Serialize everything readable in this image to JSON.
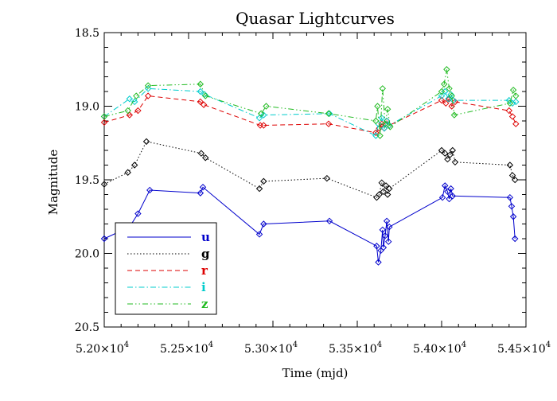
{
  "chart_data": {
    "type": "line",
    "title": "Quasar Lightcurves",
    "xlabel": "Time (mjd)",
    "ylabel": "Magnitude",
    "xlim": [
      52000,
      54500
    ],
    "ylim": [
      20.5,
      18.5
    ],
    "y_inverted": true,
    "grid": false,
    "legend_position": "bottom-left",
    "x_ticks": [
      {
        "value": 52000,
        "label": "5.20×10",
        "exp": "4"
      },
      {
        "value": 52500,
        "label": "5.25×10",
        "exp": "4"
      },
      {
        "value": 53000,
        "label": "5.30×10",
        "exp": "4"
      },
      {
        "value": 53500,
        "label": "5.35×10",
        "exp": "4"
      },
      {
        "value": 54000,
        "label": "5.40×10",
        "exp": "4"
      },
      {
        "value": 54500,
        "label": "5.45×10",
        "exp": "4"
      }
    ],
    "y_ticks": [
      {
        "value": 18.5,
        "label": "18.5"
      },
      {
        "value": 19.0,
        "label": "19.0"
      },
      {
        "value": 19.5,
        "label": "19.5"
      },
      {
        "value": 20.0,
        "label": "20.0"
      },
      {
        "value": 20.5,
        "label": "20.5"
      }
    ],
    "series": [
      {
        "name": "u",
        "color": "#0000cc",
        "dash": "",
        "x": [
          52000,
          52150,
          52200,
          52270,
          52570,
          52585,
          52920,
          52945,
          53335,
          53615,
          53625,
          53640,
          53650,
          53655,
          53665,
          53675,
          53685,
          53690,
          54005,
          54020,
          54035,
          54045,
          54055,
          54065,
          54405,
          54415,
          54425,
          54435
        ],
        "y": [
          19.9,
          19.82,
          19.73,
          19.57,
          19.59,
          19.55,
          19.87,
          19.8,
          19.78,
          19.95,
          20.06,
          19.98,
          19.84,
          19.96,
          19.88,
          19.78,
          19.92,
          19.82,
          19.62,
          19.54,
          19.58,
          19.63,
          19.56,
          19.61,
          19.62,
          19.68,
          19.75,
          19.9
        ]
      },
      {
        "name": "g",
        "color": "#000000",
        "dash": "1.5,2.5",
        "x": [
          52000,
          52140,
          52180,
          52250,
          52575,
          52600,
          52920,
          52945,
          53320,
          53615,
          53630,
          53645,
          53655,
          53670,
          53680,
          53690,
          54000,
          54020,
          54035,
          54050,
          54065,
          54080,
          54405,
          54420,
          54435
        ],
        "y": [
          19.53,
          19.45,
          19.4,
          19.24,
          19.32,
          19.35,
          19.56,
          19.51,
          19.49,
          19.62,
          19.6,
          19.52,
          19.58,
          19.54,
          19.6,
          19.56,
          19.3,
          19.32,
          19.36,
          19.33,
          19.3,
          19.38,
          19.4,
          19.47,
          19.5
        ]
      },
      {
        "name": "r",
        "color": "#dd0000",
        "dash": "6,4",
        "x": [
          52000,
          52150,
          52200,
          52260,
          52570,
          52590,
          52925,
          52945,
          53330,
          53610,
          53630,
          53645,
          53660,
          53675,
          53690,
          54000,
          54025,
          54045,
          54060,
          54080,
          54400,
          54420,
          54440
        ],
        "y": [
          19.11,
          19.06,
          19.03,
          18.93,
          18.97,
          18.99,
          19.13,
          19.13,
          19.12,
          19.18,
          19.15,
          19.12,
          19.15,
          19.1,
          19.13,
          18.96,
          18.98,
          18.95,
          19.0,
          18.97,
          19.03,
          19.07,
          19.12
        ]
      },
      {
        "name": "i",
        "color": "#00cccc",
        "dash": "7,3,1.5,3",
        "x": [
          52000,
          52150,
          52180,
          52260,
          52570,
          52595,
          52920,
          52945,
          53335,
          53610,
          53625,
          53645,
          53660,
          53675,
          53690,
          54000,
          54020,
          54040,
          54055,
          54070,
          54400,
          54420,
          54440
        ],
        "y": [
          19.07,
          18.95,
          18.97,
          18.88,
          18.9,
          18.92,
          19.08,
          19.06,
          19.05,
          19.2,
          19.12,
          19.08,
          19.15,
          19.1,
          19.13,
          18.93,
          18.9,
          18.95,
          18.92,
          18.96,
          18.96,
          18.98,
          18.97
        ]
      },
      {
        "name": "z",
        "color": "#22bb22",
        "dash": "7,3,1.5,3,1.5,3",
        "x": [
          52000,
          52140,
          52190,
          52260,
          52570,
          52600,
          52930,
          52960,
          53330,
          53610,
          53620,
          53635,
          53650,
          53665,
          53680,
          53695,
          54000,
          54015,
          54030,
          54045,
          54060,
          54075,
          54405,
          54425,
          54440
        ],
        "y": [
          19.07,
          19.03,
          18.93,
          18.86,
          18.85,
          18.93,
          19.05,
          19.0,
          19.05,
          19.1,
          19.0,
          19.2,
          18.88,
          19.12,
          19.02,
          19.14,
          18.9,
          18.85,
          18.75,
          18.88,
          18.93,
          19.06,
          18.98,
          18.89,
          18.93
        ]
      }
    ]
  }
}
